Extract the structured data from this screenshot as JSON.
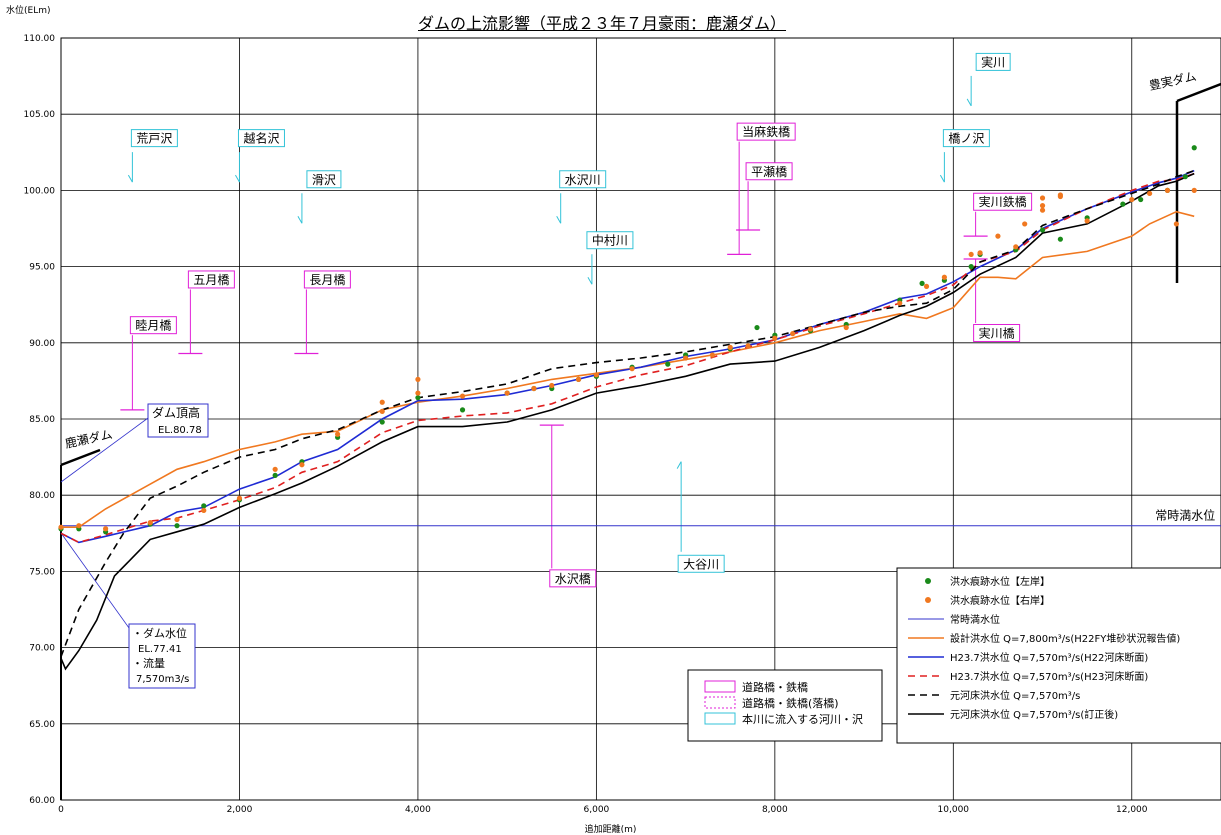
{
  "chart_data": {
    "type": "line",
    "title": "ダムの上流影響（平成２３年７月豪雨：鹿瀬ダム）",
    "ylabel_unit": "水位(ELm)",
    "xlabel": "追加距離(m)",
    "xlim": [
      0,
      13000
    ],
    "ylim": [
      60,
      110
    ],
    "x_ticks": [
      0,
      2000,
      4000,
      6000,
      8000,
      10000,
      12000
    ],
    "x_tick_labels": [
      "0",
      "2,000",
      "4,000",
      "6,000",
      "8,000",
      "10,000",
      "12,000"
    ],
    "y_ticks": [
      60,
      65,
      70,
      75,
      80,
      85,
      90,
      95,
      100,
      105,
      110
    ],
    "y_tick_labels": [
      "60.00",
      "65.00",
      "70.00",
      "75.00",
      "80.00",
      "85.00",
      "90.00",
      "95.00",
      "100.00",
      "105.00",
      "110.00"
    ],
    "grid": true,
    "normal_level_label": "常時満水位",
    "series": [
      {
        "name": "常時満水位",
        "style": "solid",
        "color": "#3333cc",
        "x": [
          0,
          13000
        ],
        "y": [
          78.0,
          78.0
        ]
      },
      {
        "name": "設計洪水位 Q=7,800m³/s(H22FY堆砂状況報告値)",
        "style": "solid",
        "color": "#f07820",
        "x": [
          0,
          200,
          500,
          900,
          1300,
          1600,
          2000,
          2400,
          2700,
          3100,
          3600,
          4000,
          4500,
          5000,
          5500,
          6000,
          6500,
          7000,
          7500,
          8000,
          8500,
          9000,
          9400,
          9700,
          10000,
          10300,
          10500,
          10700,
          11000,
          11500,
          12000,
          12200,
          12500,
          12700
        ],
        "y": [
          77.9,
          77.9,
          79.1,
          80.4,
          81.7,
          82.2,
          83.0,
          83.5,
          84.0,
          84.2,
          85.6,
          86.1,
          86.5,
          87.0,
          87.6,
          88.0,
          88.4,
          88.9,
          89.4,
          90.0,
          90.8,
          91.4,
          91.9,
          91.6,
          92.3,
          94.3,
          94.3,
          94.2,
          95.6,
          96.0,
          97.0,
          97.8,
          98.6,
          98.3
        ]
      },
      {
        "name": "H23.7洪水位 Q=7,570m³/s(H22河床断面)",
        "style": "solid",
        "color": "#1f2bd4",
        "x": [
          0,
          200,
          500,
          1000,
          1300,
          1600,
          2000,
          2400,
          2700,
          3100,
          3600,
          4000,
          4500,
          5000,
          5500,
          6000,
          6500,
          7000,
          7500,
          8000,
          8500,
          9000,
          9400,
          9700,
          10000,
          10300,
          10700,
          11000,
          11500,
          12000,
          12300,
          12500,
          12700
        ],
        "y": [
          77.5,
          76.9,
          77.3,
          78.0,
          78.9,
          79.2,
          80.4,
          81.2,
          82.2,
          83.0,
          85.0,
          86.2,
          86.3,
          86.6,
          87.2,
          87.9,
          88.4,
          89.1,
          89.6,
          90.2,
          91.2,
          92.0,
          92.9,
          93.2,
          94.0,
          95.0,
          96.1,
          97.5,
          98.8,
          99.9,
          100.5,
          100.8,
          101.3
        ]
      },
      {
        "name": "H23.7洪水位 Q=7,570m³/s(H23河床断面)",
        "style": "dashed",
        "color": "#e02020",
        "x": [
          0,
          200,
          500,
          1000,
          1300,
          1600,
          2000,
          2400,
          2700,
          3100,
          3600,
          4000,
          4500,
          5000,
          5500,
          6000,
          6500,
          7000,
          7500,
          8000,
          8500,
          9000,
          9400,
          9700,
          10000,
          10300,
          10700,
          11000,
          11500,
          12000,
          12300,
          12500,
          12700
        ],
        "y": [
          77.5,
          76.9,
          77.4,
          78.3,
          78.5,
          79.0,
          79.7,
          80.5,
          81.5,
          82.2,
          84.1,
          84.9,
          85.2,
          85.4,
          86.0,
          87.1,
          87.9,
          88.5,
          89.4,
          90.2,
          91.1,
          91.9,
          92.6,
          93.1,
          93.8,
          95.3,
          96.0,
          97.4,
          98.8,
          100.0,
          100.6,
          100.7,
          101.1
        ]
      },
      {
        "name": "元河床洪水位 Q=7,570m³/s",
        "style": "dashed",
        "color": "#000000",
        "x": [
          0,
          200,
          500,
          700,
          1000,
          1300,
          1600,
          2000,
          2400,
          2700,
          3100,
          3600,
          4000,
          4500,
          5000,
          5500,
          6000,
          6500,
          7000,
          7500,
          8000,
          8500,
          9000,
          9400,
          9700,
          10000,
          10300,
          10700,
          11000,
          11500,
          12000,
          12300,
          12500,
          12700
        ],
        "y": [
          69.4,
          72.5,
          75.6,
          77.5,
          79.8,
          80.6,
          81.5,
          82.5,
          83.0,
          83.7,
          84.3,
          85.6,
          86.4,
          86.8,
          87.3,
          88.3,
          88.7,
          89.0,
          89.4,
          89.9,
          90.4,
          91.2,
          92.0,
          92.4,
          92.6,
          93.5,
          95.3,
          96.1,
          97.7,
          98.8,
          99.8,
          100.4,
          100.9,
          101.3
        ]
      },
      {
        "name": "元河床洪水位 Q=7,570m³/s(訂正後)",
        "style": "solid",
        "color": "#000000",
        "x": [
          0,
          50,
          200,
          400,
          600,
          800,
          1000,
          1300,
          1600,
          2000,
          2400,
          2700,
          3100,
          3600,
          4000,
          4500,
          5000,
          5500,
          6000,
          6500,
          7000,
          7500,
          8000,
          8500,
          9000,
          9400,
          9700,
          10000,
          10300,
          10700,
          11000,
          11500,
          12000,
          12300,
          12500,
          12700
        ],
        "y": [
          69.3,
          68.6,
          69.8,
          71.8,
          74.7,
          75.9,
          77.1,
          77.6,
          78.1,
          79.2,
          80.1,
          80.8,
          81.9,
          83.5,
          84.5,
          84.5,
          84.8,
          85.6,
          86.7,
          87.2,
          87.8,
          88.6,
          88.8,
          89.7,
          90.8,
          91.8,
          92.4,
          93.3,
          94.5,
          95.6,
          97.2,
          97.8,
          99.3,
          100.3,
          100.6,
          101.1
        ]
      }
    ],
    "scatter_series": [
      {
        "name": "洪水痕跡水位【左岸】",
        "color": "#1a8a1a",
        "x": [
          0,
          200,
          500,
          1000,
          1300,
          1600,
          2000,
          2400,
          2700,
          3100,
          3600,
          4000,
          4500,
          5000,
          5300,
          5500,
          5800,
          6000,
          6400,
          6800,
          7000,
          7500,
          7800,
          8000,
          8400,
          8800,
          9400,
          9650,
          9900,
          10200,
          10300,
          10700,
          11000,
          11200,
          11500,
          11900,
          12100,
          12400,
          12600,
          12700
        ],
        "y": [
          77.8,
          77.8,
          77.6,
          78.1,
          78.0,
          79.3,
          79.7,
          81.3,
          82.2,
          83.8,
          84.8,
          86.4,
          85.6,
          86.7,
          87.0,
          87.0,
          87.6,
          87.8,
          88.4,
          88.6,
          89.2,
          89.6,
          91.0,
          90.5,
          90.8,
          91.2,
          92.8,
          93.9,
          94.1,
          95.0,
          95.8,
          96.1,
          97.4,
          96.8,
          98.2,
          99.1,
          99.4,
          100.0,
          100.9,
          102.8
        ]
      },
      {
        "name": "洪水痕跡水位【右岸】",
        "color": "#f07820",
        "x": [
          0,
          200,
          500,
          1000,
          1300,
          1600,
          2000,
          2400,
          2700,
          3100,
          3600,
          3600,
          4000,
          4000,
          4500,
          5000,
          5300,
          5500,
          5800,
          6000,
          6400,
          7000,
          7300,
          7500,
          7700,
          8000,
          8200,
          8400,
          8800,
          9400,
          9700,
          9900,
          10200,
          10300,
          10500,
          10700,
          10800,
          11000,
          11000,
          11000,
          11200,
          11200,
          11500,
          12000,
          12200,
          12400,
          12500,
          12700
        ],
        "y": [
          77.9,
          78.0,
          77.8,
          78.2,
          78.4,
          79.0,
          79.8,
          81.7,
          82.0,
          84.0,
          85.5,
          86.1,
          86.7,
          87.6,
          86.5,
          86.7,
          87.0,
          87.2,
          87.6,
          87.9,
          88.3,
          89.0,
          89.2,
          89.7,
          89.8,
          90.3,
          90.6,
          90.9,
          91.0,
          92.6,
          93.7,
          94.3,
          95.8,
          95.9,
          97.0,
          96.3,
          97.8,
          98.7,
          99.0,
          99.5,
          99.6,
          99.7,
          98.0,
          99.4,
          99.8,
          100.0,
          97.8,
          100.0
        ]
      }
    ],
    "annotations": {
      "bridges": [
        {
          "label": "睦月橋",
          "x": 800,
          "y_top": 90.5,
          "y_bottom": 85.6
        },
        {
          "label": "五月橋",
          "x": 1450,
          "y_top": 93.5,
          "y_bottom": 89.3
        },
        {
          "label": "長月橋",
          "x": 2750,
          "y_top": 93.5,
          "y_bottom": 89.3
        },
        {
          "label": "水沢橋",
          "x": 5500,
          "y_top": 75.2,
          "y_bottom": 84.6
        },
        {
          "label": "当麻鉄橋",
          "x": 7600,
          "y_top": 103.2,
          "y_bottom": 95.8
        },
        {
          "label": "平瀬橋",
          "x": 7700,
          "y_top": 100.6,
          "y_bottom": 97.4
        },
        {
          "label": "実川鉄橋",
          "x": 10250,
          "y_top": 98.6,
          "y_bottom": 97.0
        },
        {
          "label": "実川橋",
          "x": 10250,
          "y_top": 91.3,
          "y_bottom": 95.5
        }
      ],
      "tributaries": [
        {
          "label": "荒戸沢",
          "x": 800,
          "y": 101.2
        },
        {
          "label": "越名沢",
          "x": 2000,
          "y": 101.2
        },
        {
          "label": "滑沢",
          "x": 2700,
          "y": 98.5
        },
        {
          "label": "水沢川",
          "x": 5600,
          "y": 98.5
        },
        {
          "label": "中村川",
          "x": 5950,
          "y": 94.5
        },
        {
          "label": "橋ノ沢",
          "x": 9900,
          "y": 101.2
        },
        {
          "label": "実川",
          "x": 10200,
          "y": 106.2
        },
        {
          "label": "大谷川",
          "x": 6950,
          "y": 75.5
        }
      ],
      "dam_left_label": "鹿瀬ダム",
      "dam_right_label": "豊実ダム",
      "dam_crest": {
        "title": "ダム頂高",
        "value": "EL.80.78"
      },
      "dam_info": {
        "line1": "・ダム水位",
        "line2": "EL.77.41",
        "line3": "・流量",
        "line4": "7,570m3/s"
      }
    },
    "legend_bridges": {
      "items": [
        "道路橋・鉄橋",
        "道路橋・鉄橋(落橋)",
        "本川に流入する河川・沢"
      ]
    },
    "legend": {
      "placement": "bottom-right",
      "items": [
        "洪水痕跡水位【左岸】",
        "洪水痕跡水位【右岸】",
        "常時満水位",
        "設計洪水位 Q=7,800m³/s(H22FY堆砂状況報告値)",
        "H23.7洪水位 Q=7,570m³/s(H22河床断面)",
        "H23.7洪水位 Q=7,570m³/s(H23河床断面)",
        "元河床洪水位 Q=7,570m³/s",
        "元河床洪水位 Q=7,570m³/s(訂正後)"
      ]
    }
  }
}
